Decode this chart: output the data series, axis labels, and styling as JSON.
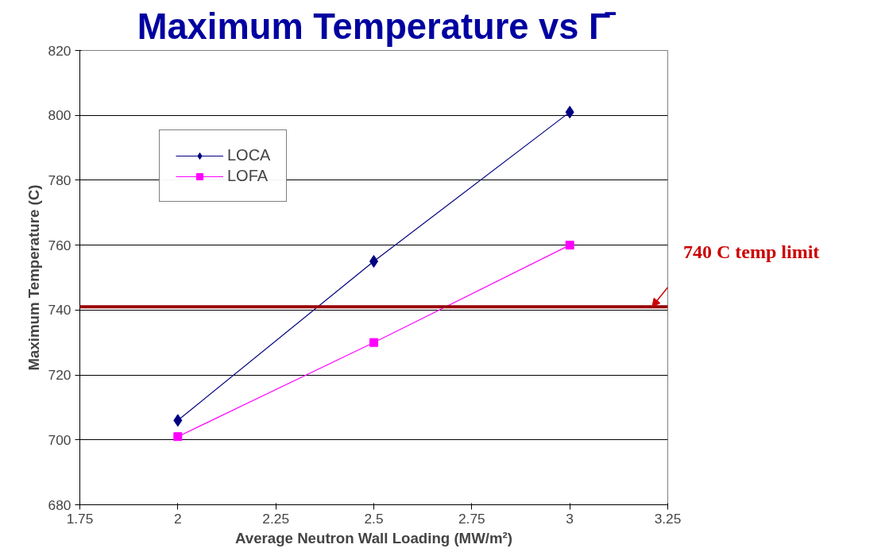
{
  "chart_data": {
    "type": "line",
    "title": "Maximum Temperature vs Γ̄",
    "xlabel": "Average Neutron Wall Loading (MW/m²)",
    "ylabel": "Maximum Temperature (C)",
    "x": [
      2,
      2.5,
      3
    ],
    "series": [
      {
        "name": "LOCA",
        "color": "#000080",
        "values": [
          706,
          755,
          801
        ],
        "marker": "diamond"
      },
      {
        "name": "LOFA",
        "color": "#ff00ff",
        "values": [
          701,
          730,
          760
        ],
        "marker": "square"
      }
    ],
    "xlim": [
      1.75,
      3.25
    ],
    "xticks": [
      1.75,
      2,
      2.25,
      2.5,
      2.75,
      3,
      3.25
    ],
    "ylim": [
      680,
      820
    ],
    "yticks": [
      680,
      700,
      720,
      740,
      760,
      780,
      800,
      820
    ],
    "ref_lines": [
      {
        "axis": "y",
        "value": 741,
        "label": "740 C temp limit",
        "color": "#990000"
      }
    ],
    "grid": "y",
    "legend": "top left",
    "line_style": "solid"
  }
}
